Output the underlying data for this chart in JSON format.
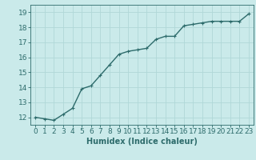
{
  "x": [
    0,
    1,
    2,
    3,
    4,
    5,
    6,
    7,
    8,
    9,
    10,
    11,
    12,
    13,
    14,
    15,
    16,
    17,
    18,
    19,
    20,
    21,
    22,
    23
  ],
  "y": [
    12.0,
    11.9,
    11.8,
    12.2,
    12.6,
    13.9,
    14.1,
    14.8,
    15.5,
    16.2,
    16.4,
    16.5,
    16.6,
    17.2,
    17.4,
    17.4,
    18.1,
    18.2,
    18.3,
    18.4,
    18.4,
    18.4,
    18.4,
    18.9
  ],
  "line_color": "#2d6b6b",
  "marker": "+",
  "marker_size": 3,
  "background_color": "#caeaea",
  "grid_color": "#b0d8d8",
  "xlabel": "Humidex (Indice chaleur)",
  "xlim": [
    -0.5,
    23.5
  ],
  "ylim": [
    11.5,
    19.5
  ],
  "yticks": [
    12,
    13,
    14,
    15,
    16,
    17,
    18,
    19
  ],
  "xticks": [
    0,
    1,
    2,
    3,
    4,
    5,
    6,
    7,
    8,
    9,
    10,
    11,
    12,
    13,
    14,
    15,
    16,
    17,
    18,
    19,
    20,
    21,
    22,
    23
  ],
  "xlabel_fontsize": 7,
  "tick_fontsize": 6.5,
  "line_width": 1.0
}
